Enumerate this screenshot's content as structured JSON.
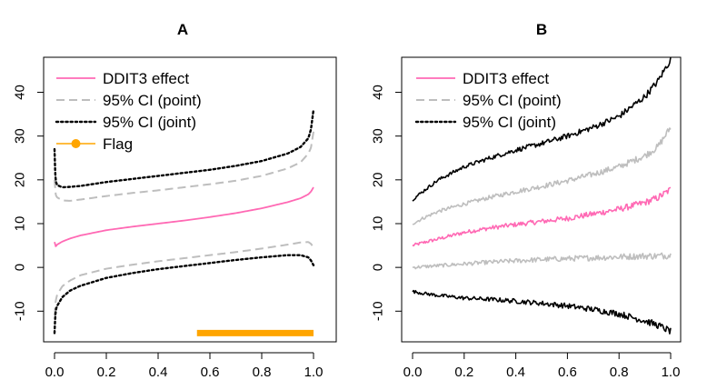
{
  "chart_data": [
    {
      "panel": "A",
      "type": "line",
      "title": "A",
      "xlabel": "",
      "ylabel": "",
      "xlim": [
        0,
        1
      ],
      "ylim": [
        -17,
        48
      ],
      "xticks": [
        "0.0",
        "0.2",
        "0.4",
        "0.6",
        "0.8",
        "1.0"
      ],
      "yticks": [
        "-10",
        "0",
        "10",
        "20",
        "30",
        "40"
      ],
      "legend": [
        {
          "label": "DDIT3 effect",
          "style": "solid",
          "color": "#ff69b4"
        },
        {
          "label": "95% CI (point)",
          "style": "dashed",
          "color": "#bebebe"
        },
        {
          "label": "95% CI (joint)",
          "style": "dotted",
          "color": "#000000"
        },
        {
          "label": "Flag",
          "style": "solid-marker",
          "color": "#ffa500"
        }
      ],
      "series": [
        {
          "name": "DDIT3 effect",
          "style": "solid",
          "color": "#ff69b4",
          "x": [
            0,
            0.005,
            0.01,
            0.03,
            0.06,
            0.1,
            0.2,
            0.3,
            0.4,
            0.5,
            0.6,
            0.7,
            0.8,
            0.9,
            0.95,
            0.98,
            0.99,
            1.0
          ],
          "y": [
            5.8,
            4.8,
            5.2,
            5.9,
            6.6,
            7.3,
            8.5,
            9.3,
            10.0,
            10.7,
            11.5,
            12.4,
            13.5,
            14.9,
            15.8,
            16.7,
            17.3,
            18.3
          ]
        },
        {
          "name": "95% CI (point) upper",
          "style": "dashed",
          "color": "#bebebe",
          "x": [
            0,
            0.005,
            0.01,
            0.03,
            0.06,
            0.1,
            0.2,
            0.3,
            0.4,
            0.5,
            0.6,
            0.7,
            0.8,
            0.9,
            0.95,
            0.98,
            0.99,
            1.0
          ],
          "y": [
            20.0,
            16.5,
            16.0,
            15.3,
            15.2,
            15.5,
            16.3,
            17.0,
            17.6,
            18.3,
            19.0,
            19.8,
            20.9,
            22.6,
            24.0,
            26.0,
            27.3,
            31.0
          ]
        },
        {
          "name": "95% CI (point) lower",
          "style": "dashed",
          "color": "#bebebe",
          "x": [
            0,
            0.005,
            0.01,
            0.03,
            0.06,
            0.1,
            0.2,
            0.3,
            0.4,
            0.5,
            0.6,
            0.7,
            0.8,
            0.9,
            0.95,
            0.98,
            0.99,
            1.0
          ],
          "y": [
            -11.0,
            -7.5,
            -6.3,
            -4.3,
            -3.0,
            -1.8,
            -0.3,
            0.6,
            1.4,
            2.1,
            2.8,
            3.5,
            4.3,
            5.2,
            5.7,
            5.8,
            5.4,
            4.5
          ]
        },
        {
          "name": "95% CI (joint) upper",
          "style": "dotted",
          "color": "#000000",
          "x": [
            0,
            0.003,
            0.006,
            0.01,
            0.03,
            0.06,
            0.1,
            0.2,
            0.3,
            0.4,
            0.5,
            0.6,
            0.7,
            0.8,
            0.9,
            0.95,
            0.98,
            0.99,
            1.0
          ],
          "y": [
            27.0,
            21.0,
            19.5,
            18.8,
            18.3,
            18.4,
            18.6,
            19.5,
            20.2,
            20.9,
            21.6,
            22.3,
            23.2,
            24.3,
            26.0,
            27.5,
            29.5,
            31.5,
            36.0
          ]
        },
        {
          "name": "95% CI (joint) lower",
          "style": "dotted",
          "color": "#000000",
          "x": [
            0,
            0.003,
            0.006,
            0.01,
            0.03,
            0.06,
            0.1,
            0.2,
            0.3,
            0.4,
            0.5,
            0.6,
            0.7,
            0.8,
            0.9,
            0.95,
            0.98,
            0.99,
            1.0
          ],
          "y": [
            -15.0,
            -11.0,
            -9.5,
            -8.8,
            -6.8,
            -5.3,
            -4.2,
            -2.4,
            -1.3,
            -0.4,
            0.3,
            1.0,
            1.7,
            2.3,
            2.8,
            2.8,
            2.3,
            1.6,
            0.5
          ]
        },
        {
          "name": "Flag",
          "style": "thick",
          "color": "#ffa500",
          "x": [
            0.55,
            1.0
          ],
          "y": [
            -15,
            -15
          ]
        }
      ]
    },
    {
      "panel": "B",
      "type": "line",
      "title": "B",
      "xlabel": "",
      "ylabel": "",
      "xlim": [
        0,
        1
      ],
      "ylim": [
        -17,
        48
      ],
      "xticks": [
        "0.0",
        "0.2",
        "0.4",
        "0.6",
        "0.8",
        "1.0"
      ],
      "yticks": [
        "-10",
        "0",
        "10",
        "20",
        "30",
        "40"
      ],
      "legend": [
        {
          "label": "DDIT3 effect",
          "style": "solid",
          "color": "#ff69b4"
        },
        {
          "label": "95% CI (point)",
          "style": "dashed",
          "color": "#bebebe"
        },
        {
          "label": "95% CI (joint)",
          "style": "dotted",
          "color": "#000000"
        }
      ],
      "series": [
        {
          "name": "DDIT3 effect",
          "style": "noisy",
          "color": "#ff69b4",
          "x": [
            0,
            0.05,
            0.1,
            0.2,
            0.3,
            0.4,
            0.5,
            0.6,
            0.7,
            0.8,
            0.9,
            0.95,
            1.0
          ],
          "y": [
            5.0,
            5.8,
            6.5,
            8.0,
            9.0,
            9.8,
            10.5,
            11.2,
            12.2,
            13.3,
            14.8,
            15.9,
            17.8
          ]
        },
        {
          "name": "95% CI (point) upper",
          "style": "noisy",
          "color": "#bebebe",
          "x": [
            0,
            0.05,
            0.1,
            0.2,
            0.3,
            0.4,
            0.5,
            0.6,
            0.7,
            0.8,
            0.9,
            0.95,
            1.0
          ],
          "y": [
            10.0,
            11.5,
            12.8,
            14.5,
            16.0,
            17.3,
            18.5,
            19.8,
            21.3,
            23.0,
            25.5,
            27.5,
            32.0
          ]
        },
        {
          "name": "95% CI (point) lower",
          "style": "noisy",
          "color": "#bebebe",
          "x": [
            0,
            0.05,
            0.1,
            0.2,
            0.3,
            0.4,
            0.5,
            0.6,
            0.7,
            0.8,
            0.9,
            0.95,
            1.0
          ],
          "y": [
            0.0,
            0.2,
            0.4,
            0.8,
            1.2,
            1.5,
            1.8,
            2.0,
            2.2,
            2.4,
            2.6,
            2.6,
            2.8
          ]
        },
        {
          "name": "95% CI (joint) upper",
          "style": "noisy",
          "color": "#000000",
          "x": [
            0,
            0.05,
            0.1,
            0.2,
            0.3,
            0.4,
            0.5,
            0.6,
            0.7,
            0.8,
            0.9,
            0.95,
            1.0
          ],
          "y": [
            15.5,
            17.8,
            20.0,
            23.0,
            25.0,
            26.8,
            28.3,
            30.0,
            32.0,
            34.5,
            39.0,
            42.5,
            47.5
          ]
        },
        {
          "name": "95% CI (joint) lower",
          "style": "noisy",
          "color": "#000000",
          "x": [
            0,
            0.05,
            0.1,
            0.2,
            0.3,
            0.4,
            0.5,
            0.6,
            0.7,
            0.8,
            0.9,
            0.95,
            1.0
          ],
          "y": [
            -5.5,
            -6.0,
            -6.4,
            -7.0,
            -7.3,
            -7.7,
            -8.2,
            -8.8,
            -9.6,
            -10.6,
            -12.2,
            -13.2,
            -14.6
          ]
        }
      ]
    }
  ]
}
